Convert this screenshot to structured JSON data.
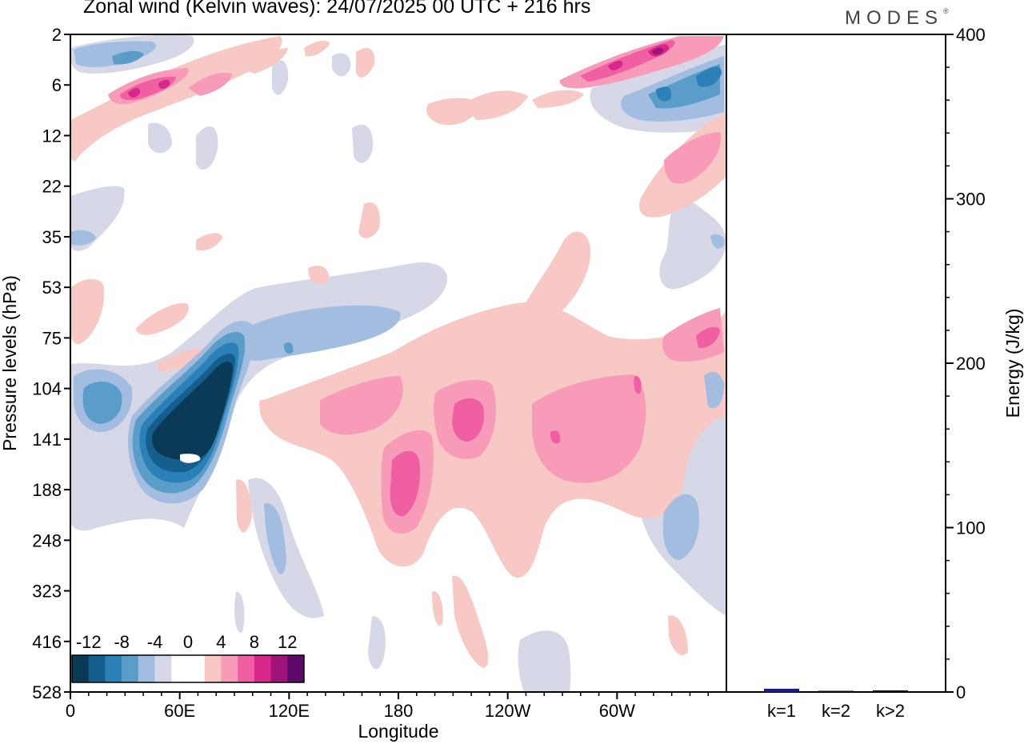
{
  "header": {
    "title": "Zonal wind (Kelvin waves):  24/07/2025  00 UTC  + 216 hrs",
    "brand": "MODES",
    "brand_mark": "®"
  },
  "chart_data": [
    {
      "type": "heatmap",
      "title": "Zonal wind (Kelvin waves):  24/07/2025  00 UTC  + 216 hrs",
      "xlabel": "Longitude",
      "ylabel": "Pressure levels (hPa)",
      "x_ticks": [
        {
          "lon": 0,
          "label": "0"
        },
        {
          "lon": 60,
          "label": "60E"
        },
        {
          "lon": 120,
          "label": "120E"
        },
        {
          "lon": 180,
          "label": "180"
        },
        {
          "lon": 240,
          "label": "120W"
        },
        {
          "lon": 300,
          "label": "60W"
        }
      ],
      "xlim": [
        0,
        360
      ],
      "y_levels": [
        "2",
        "6",
        "12",
        "22",
        "35",
        "53",
        "75",
        "104",
        "141",
        "188",
        "248",
        "323",
        "416",
        "528"
      ],
      "colorbar": {
        "labels": [
          "-12",
          "-8",
          "-4",
          "0",
          "4",
          "8",
          "12"
        ],
        "colors": [
          "#0a3a55",
          "#145f8e",
          "#2b80b7",
          "#5b9dc9",
          "#a2bde0",
          "#d6d8e8",
          "#ffffff",
          "#ffffff",
          "#f8c8c5",
          "#f79bb8",
          "#ef5fa2",
          "#d8278a",
          "#a0147a",
          "#5b0a6a"
        ]
      },
      "features": [
        {
          "name": "negative-core-indian-ocean",
          "sign": "negative",
          "lon_range": [
            40,
            100
          ],
          "level_range": [
            "75",
            "248"
          ],
          "peak": "-14"
        },
        {
          "name": "positive-core-dateline",
          "sign": "positive",
          "lon_range": [
            170,
            200
          ],
          "level_range": [
            "104",
            "248"
          ],
          "peak": "8"
        },
        {
          "name": "positive-core-160w",
          "sign": "positive",
          "lon_range": [
            200,
            230
          ],
          "level_range": [
            "104",
            "188"
          ],
          "peak": "8"
        },
        {
          "name": "positive-upper-west",
          "sign": "positive",
          "lon_range": [
            20,
            80
          ],
          "level_range": [
            "2",
            "12"
          ],
          "peak": "12"
        },
        {
          "name": "positive-upper-east",
          "sign": "positive",
          "lon_range": [
            280,
            360
          ],
          "level_range": [
            "2",
            "6"
          ],
          "peak": "12"
        },
        {
          "name": "negative-upper-east",
          "sign": "negative",
          "lon_range": [
            300,
            360
          ],
          "level_range": [
            "2",
            "12"
          ],
          "peak": "-12"
        }
      ]
    },
    {
      "type": "bar",
      "ylabel": "Energy (J/kg)",
      "categories": [
        "k=1",
        "k=2",
        "k>2"
      ],
      "values": [
        2,
        0.5,
        1
      ],
      "ylim": [
        0,
        400
      ],
      "y_ticks": [
        "0",
        "100",
        "200",
        "300",
        "400"
      ],
      "bar_colors": [
        "#1a1a8a",
        "#111111",
        "#111111"
      ]
    }
  ]
}
